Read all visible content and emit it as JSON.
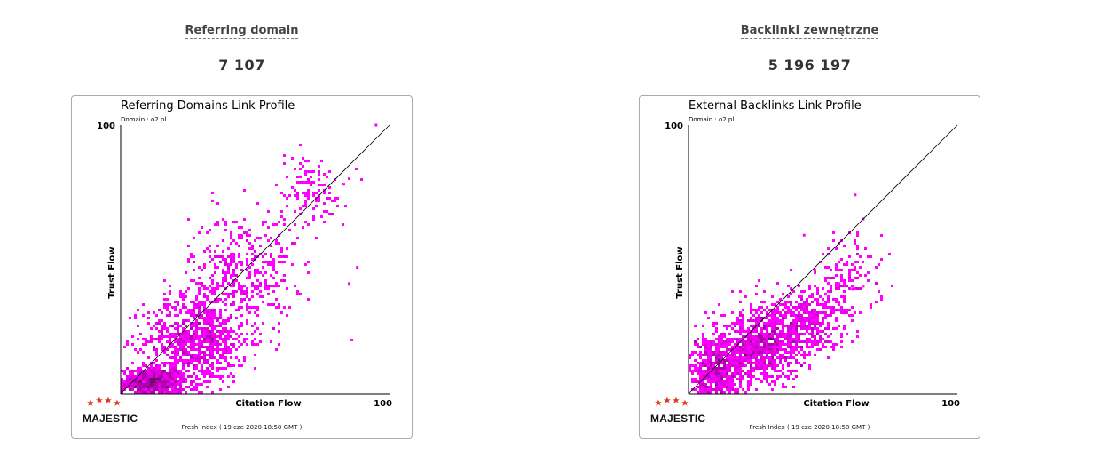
{
  "metrics": [
    {
      "title": "Referring domain",
      "value": "7 107"
    },
    {
      "title": "Backlinki zewnętrzne",
      "value": "5 196 197"
    }
  ],
  "logo_text": "MAJESTIC",
  "footer": "Fresh Index ( 19 cze 2020 18:58 GMT )",
  "colors": {
    "magenta": "#ff00ff",
    "dark": "#5a0a5a",
    "accent_red": "#e03a1e"
  },
  "chart_data": [
    {
      "type": "heatmap",
      "title": "Referring Domains Link Profile",
      "subtitle": "Domain : o2.pl",
      "xlabel": "Citation Flow",
      "ylabel": "Trust Flow",
      "xlim": [
        0,
        100
      ],
      "ylim": [
        0,
        100
      ],
      "x_tick_labels": [
        "100"
      ],
      "y_tick_labels": [
        "100"
      ],
      "reference_line": [
        [
          0,
          0
        ],
        [
          100,
          100
        ]
      ],
      "clusters": [
        {
          "cf": 12,
          "tf": 4,
          "spread_cf": 10,
          "spread_tf": 5,
          "density": "very-high"
        },
        {
          "cf": 28,
          "tf": 20,
          "spread_cf": 16,
          "spread_tf": 14,
          "density": "high"
        },
        {
          "cf": 45,
          "tf": 45,
          "spread_cf": 16,
          "spread_tf": 18,
          "density": "medium"
        },
        {
          "cf": 70,
          "tf": 75,
          "spread_cf": 12,
          "spread_tf": 12,
          "density": "low"
        }
      ],
      "outliers": [
        [
          86,
          20
        ],
        [
          85,
          41
        ],
        [
          88,
          47
        ],
        [
          95,
          100
        ],
        [
          85,
          80
        ],
        [
          83,
          78
        ]
      ]
    },
    {
      "type": "heatmap",
      "title": "External Backlinks Link Profile",
      "subtitle": "Domain : o2.pl",
      "xlabel": "Citation Flow",
      "ylabel": "Trust Flow",
      "xlim": [
        0,
        100
      ],
      "ylim": [
        0,
        100
      ],
      "x_tick_labels": [
        "100"
      ],
      "y_tick_labels": [
        "100"
      ],
      "reference_line": [
        [
          0,
          0
        ],
        [
          100,
          100
        ]
      ],
      "clusters": [
        {
          "cf": 10,
          "tf": 8,
          "spread_cf": 9,
          "spread_tf": 12,
          "density": "very-high"
        },
        {
          "cf": 28,
          "tf": 18,
          "spread_cf": 12,
          "spread_tf": 12,
          "density": "high"
        },
        {
          "cf": 45,
          "tf": 27,
          "spread_cf": 12,
          "spread_tf": 10,
          "density": "medium"
        },
        {
          "cf": 60,
          "tf": 45,
          "spread_cf": 10,
          "spread_tf": 12,
          "density": "low"
        }
      ],
      "outliers": [
        [
          62,
          74
        ],
        [
          43,
          59
        ],
        [
          65,
          65
        ],
        [
          47,
          46
        ],
        [
          61,
          39
        ],
        [
          56,
          41
        ],
        [
          65,
          40
        ]
      ]
    }
  ]
}
